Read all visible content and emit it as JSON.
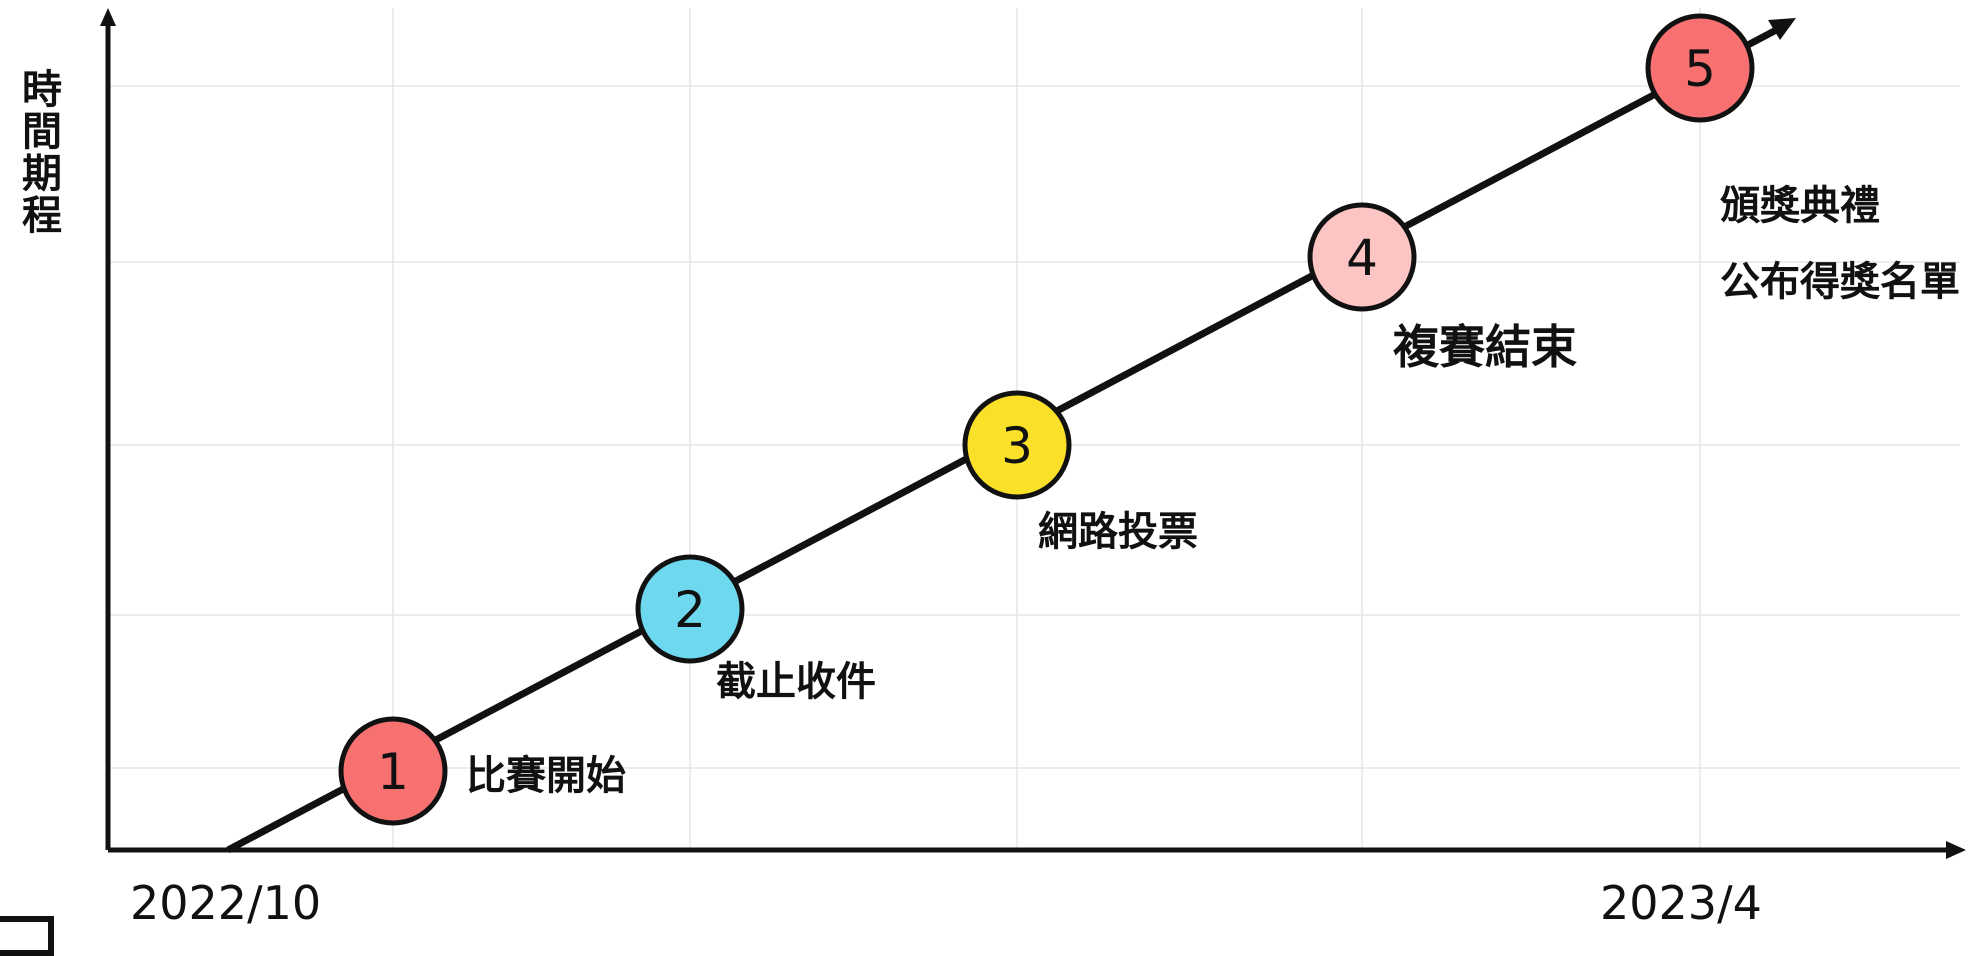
{
  "axis": {
    "y_label": "時間期程",
    "start_date": "2022/10",
    "end_date": "2023/4"
  },
  "milestones": [
    {
      "number": "1",
      "label": "比賽開始",
      "color": "#f87171"
    },
    {
      "number": "2",
      "label": "截止收件",
      "color": "#6dd8ee"
    },
    {
      "number": "3",
      "label": "網路投票",
      "color": "#fbe02a"
    },
    {
      "number": "4",
      "label": "複賽結束",
      "color": "#fdc4c4"
    },
    {
      "number": "5",
      "label_lines": [
        "頒獎典禮",
        "公布得獎名單"
      ],
      "color": "#f87171"
    }
  ]
}
